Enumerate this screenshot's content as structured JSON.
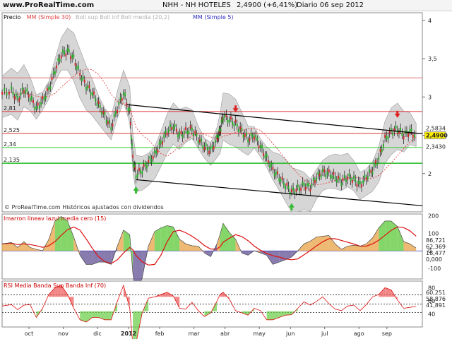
{
  "header": {
    "site": "www.ProRealTime.com",
    "ticker": "NHH - NH HOTELES",
    "quote": "2,4900 (+6,41%)",
    "date": "Diario 06 sep 2012"
  },
  "chart_data": [
    {
      "type": "line",
      "panel": "price",
      "legend": [
        {
          "text": "Precio",
          "color": "#000000"
        },
        {
          "text": "MM (Simple 30)",
          "color": "#e04040"
        },
        {
          "text": "Boll sup Boll inf Boll media (20,2)",
          "color": "#b0b0b0"
        },
        {
          "text": "MM (Simple 5)",
          "color": "#3030c0"
        }
      ],
      "y_ticks": [
        "4",
        "3,5",
        "3",
        "2,5",
        "2"
      ],
      "ylim": [
        1.5,
        4.1
      ],
      "levels": [
        {
          "label": "2,81",
          "value": 2.81,
          "color": "#e03030"
        },
        {
          "label": "2,525",
          "value": 2.525,
          "color": "#e03030"
        },
        {
          "label": "2,34",
          "value": 2.34,
          "color": "#33cc33"
        },
        {
          "label": "2,135",
          "value": 2.135,
          "color": "#22bb22"
        }
      ],
      "level_3_25": 3.25,
      "right_labels": [
        {
          "text": "2,5834",
          "value": 2.5834
        },
        {
          "text": "2,4900",
          "value": 2.49,
          "highlight": "#ffee00"
        },
        {
          "text": "2,3430",
          "value": 2.343
        }
      ],
      "close_path": [
        [
          0,
          3.05
        ],
        [
          6,
          3.08
        ],
        [
          10,
          2.97
        ],
        [
          14,
          3.1
        ],
        [
          18,
          3.0
        ],
        [
          22,
          2.85
        ],
        [
          26,
          2.95
        ],
        [
          30,
          3.1
        ],
        [
          34,
          3.35
        ],
        [
          38,
          3.55
        ],
        [
          42,
          3.6
        ],
        [
          46,
          3.5
        ],
        [
          50,
          3.3
        ],
        [
          54,
          3.15
        ],
        [
          58,
          3.05
        ],
        [
          62,
          2.9
        ],
        [
          66,
          2.75
        ],
        [
          70,
          2.6
        ],
        [
          74,
          2.85
        ],
        [
          78,
          3.05
        ],
        [
          82,
          2.8
        ],
        [
          84,
          2.2
        ],
        [
          86,
          1.98
        ],
        [
          90,
          2.05
        ],
        [
          94,
          2.15
        ],
        [
          98,
          2.25
        ],
        [
          102,
          2.4
        ],
        [
          106,
          2.55
        ],
        [
          110,
          2.62
        ],
        [
          114,
          2.5
        ],
        [
          118,
          2.55
        ],
        [
          122,
          2.58
        ],
        [
          126,
          2.45
        ],
        [
          130,
          2.35
        ],
        [
          134,
          2.3
        ],
        [
          138,
          2.45
        ],
        [
          140,
          2.55
        ],
        [
          142,
          2.75
        ],
        [
          146,
          2.7
        ],
        [
          150,
          2.65
        ],
        [
          154,
          2.55
        ],
        [
          158,
          2.45
        ],
        [
          162,
          2.5
        ],
        [
          166,
          2.35
        ],
        [
          170,
          2.2
        ],
        [
          174,
          2.05
        ],
        [
          178,
          1.95
        ],
        [
          182,
          1.85
        ],
        [
          186,
          1.76
        ],
        [
          190,
          1.8
        ],
        [
          194,
          1.85
        ],
        [
          198,
          1.82
        ],
        [
          202,
          1.95
        ],
        [
          206,
          2.02
        ],
        [
          210,
          2.0
        ],
        [
          214,
          1.95
        ],
        [
          218,
          1.9
        ],
        [
          222,
          1.95
        ],
        [
          226,
          1.92
        ],
        [
          230,
          1.85
        ],
        [
          234,
          1.95
        ],
        [
          238,
          2.05
        ],
        [
          242,
          2.2
        ],
        [
          246,
          2.45
        ],
        [
          250,
          2.55
        ],
        [
          254,
          2.58
        ],
        [
          258,
          2.5
        ],
        [
          262,
          2.55
        ],
        [
          266,
          2.49
        ]
      ],
      "arrows": [
        {
          "t": 86,
          "dir": "up",
          "color": "#33bb33"
        },
        {
          "t": 150,
          "dir": "down",
          "color": "#dd2222"
        },
        {
          "t": 186,
          "dir": "up",
          "color": "#33bb33"
        },
        {
          "t": 254,
          "dir": "down",
          "color": "#dd2222"
        }
      ],
      "channel": [
        {
          "from": [
            80,
            2.9
          ],
          "to": [
            270,
            2.52
          ]
        },
        {
          "from": [
            86,
            1.92
          ],
          "to": [
            270,
            1.58
          ]
        }
      ],
      "watermark": "© ProRealTime.com Históricos ajustados con dividendos"
    },
    {
      "type": "area",
      "panel": "oscillator",
      "legend": "Imarron lineav lazul media cero (15)",
      "legend_color": "#cc0000",
      "y_ticks": [
        "200",
        "100",
        "0",
        "-100"
      ],
      "ylim": [
        -160,
        210
      ],
      "right_labels": [
        {
          "text": "86,721",
          "color": "#cc0000"
        },
        {
          "text": "62,369",
          "color": "#000000"
        },
        {
          "text": "18,477",
          "color": "#000000"
        },
        {
          "text": "0,000",
          "color": "#000000"
        }
      ]
    },
    {
      "type": "line",
      "panel": "rsi",
      "legend": "RSI Media Banda Sup Banda Inf (70)",
      "legend_color": "#cc0000",
      "y_ticks": [
        "80",
        "60",
        "40"
      ],
      "ylim": [
        20,
        90
      ],
      "right_labels": [
        {
          "text": "60,251",
          "color": "#000000"
        },
        {
          "text": "58,876",
          "color": "#cc0000"
        },
        {
          "text": "41,891",
          "color": "#000000"
        }
      ]
    }
  ],
  "x_axis": {
    "labels": [
      "oct",
      "nov",
      "dic",
      "2012",
      "feb",
      "mar",
      "abr",
      "may",
      "jun",
      "jul",
      "ago",
      "sep"
    ],
    "positions": [
      0,
      22,
      44,
      64,
      84,
      106,
      126,
      148,
      168,
      190,
      212,
      230
    ]
  }
}
